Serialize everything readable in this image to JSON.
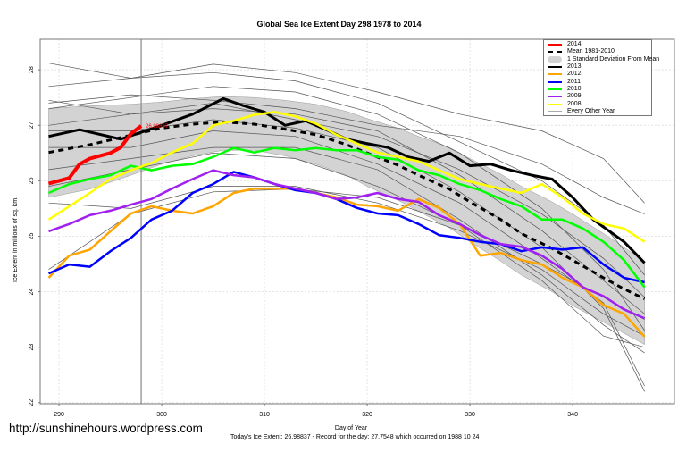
{
  "chart_data": {
    "type": "line",
    "title": "Global Sea Ice Extent Day 298 1978 to 2014",
    "xlabel": "Day of Year",
    "ylabel": "Ice Extent in millions of sq. km.",
    "xlim": [
      288.17,
      349.9
    ],
    "ylim": [
      21.98,
      28.55
    ],
    "xticks": [
      290,
      300,
      310,
      320,
      330,
      340
    ],
    "yticks": [
      22,
      23,
      24,
      25,
      26,
      27,
      28
    ],
    "grid": true,
    "legend_position": "top-right",
    "current_day_marker": 298,
    "current_value_label": "26.98837",
    "footer": "Today's Ice Extent: 26.98837  - Record for the day: 27.7548 which occurred on 1988 10 24",
    "watermark": "http://sunshinehours.wordpress.com",
    "legend": [
      "2014",
      "Mean 1981-2010",
      "1 Standard Deviation From Mean",
      "2013",
      "2012",
      "2011",
      "2010",
      "2009",
      "2008",
      "Every Other Year"
    ],
    "mean": {
      "name": "Mean 1981-2010",
      "color": "#000000",
      "x": [
        289,
        293,
        297,
        300,
        303,
        306,
        309,
        312,
        315,
        318,
        320,
        323,
        325,
        328,
        330,
        333,
        335,
        338,
        340,
        343,
        345,
        347
      ],
      "y": [
        26.51,
        26.65,
        26.82,
        26.95,
        27.02,
        27.06,
        27.02,
        26.93,
        26.83,
        26.65,
        26.5,
        26.28,
        26.1,
        25.85,
        25.62,
        25.3,
        25.05,
        24.78,
        24.57,
        24.25,
        24.05,
        23.87
      ]
    },
    "sd_band": {
      "name": "1 Standard Deviation From Mean",
      "color": "#d3d3d3",
      "x": [
        289,
        293,
        297,
        300,
        303,
        306,
        309,
        312,
        315,
        318,
        320,
        323,
        325,
        328,
        330,
        333,
        335,
        338,
        340,
        343,
        345,
        347
      ],
      "upper": [
        27.3,
        27.35,
        27.38,
        27.42,
        27.48,
        27.52,
        27.5,
        27.45,
        27.38,
        27.25,
        27.12,
        26.95,
        26.8,
        26.6,
        26.4,
        26.12,
        25.9,
        25.62,
        25.4,
        25.05,
        24.8,
        24.55
      ],
      "lower": [
        25.7,
        25.85,
        26.1,
        26.3,
        26.45,
        26.55,
        26.55,
        26.45,
        26.3,
        26.1,
        25.9,
        25.65,
        25.45,
        25.15,
        24.9,
        24.55,
        24.3,
        24.0,
        23.75,
        23.45,
        23.25,
        23.05
      ]
    },
    "series": [
      {
        "name": "2014",
        "color": "#ff0000",
        "width": 4,
        "x": [
          289,
          290,
          291,
          292,
          293,
          294,
          295,
          296,
          297,
          298
        ],
        "y": [
          25.95,
          26.0,
          26.05,
          26.3,
          26.4,
          26.45,
          26.5,
          26.6,
          26.85,
          26.99
        ]
      },
      {
        "name": "2013",
        "color": "#000000",
        "width": 3,
        "x": [
          289,
          292,
          296,
          300,
          303,
          306,
          308,
          310,
          312,
          314,
          316,
          318,
          320,
          322,
          324,
          326,
          328,
          330,
          332,
          334,
          336,
          338,
          340,
          342,
          345,
          347
        ],
        "y": [
          26.8,
          26.92,
          26.75,
          27.0,
          27.2,
          27.48,
          27.35,
          27.24,
          27.0,
          27.08,
          26.92,
          26.75,
          26.67,
          26.6,
          26.43,
          26.35,
          26.5,
          26.27,
          26.3,
          26.19,
          26.1,
          26.03,
          25.7,
          25.3,
          24.9,
          24.52
        ]
      },
      {
        "name": "2012",
        "color": "#ffa500",
        "width": 2.5,
        "x": [
          289,
          291,
          293,
          295,
          297,
          299,
          301,
          303,
          305,
          307,
          309,
          311,
          313,
          315,
          317,
          319,
          321,
          323,
          325,
          327,
          329,
          331,
          333,
          335,
          337,
          339,
          341,
          343,
          345,
          347
        ],
        "y": [
          24.25,
          24.65,
          24.76,
          25.09,
          25.41,
          25.54,
          25.46,
          25.41,
          25.54,
          25.78,
          25.86,
          25.86,
          25.86,
          25.78,
          25.7,
          25.57,
          25.54,
          25.46,
          25.67,
          25.51,
          25.22,
          24.65,
          24.7,
          24.57,
          24.49,
          24.25,
          24.08,
          23.76,
          23.6,
          23.19
        ]
      },
      {
        "name": "2011",
        "color": "#0000ff",
        "width": 2.5,
        "x": [
          289,
          291,
          293,
          295,
          297,
          299,
          301,
          303,
          305,
          307,
          309,
          311,
          313,
          315,
          317,
          319,
          321,
          323,
          325,
          327,
          329,
          331,
          333,
          335,
          337,
          339,
          341,
          343,
          345,
          347
        ],
        "y": [
          24.33,
          24.49,
          24.45,
          24.73,
          24.97,
          25.3,
          25.46,
          25.78,
          25.94,
          26.16,
          26.06,
          25.94,
          25.83,
          25.78,
          25.67,
          25.51,
          25.41,
          25.38,
          25.22,
          25.02,
          24.97,
          24.9,
          24.86,
          24.73,
          24.8,
          24.76,
          24.8,
          24.49,
          24.25,
          24.17
        ]
      },
      {
        "name": "2010",
        "color": "#00ff00",
        "width": 2.5,
        "x": [
          289,
          291,
          293,
          295,
          297,
          299,
          301,
          303,
          305,
          307,
          309,
          311,
          313,
          315,
          317,
          319,
          321,
          323,
          325,
          327,
          329,
          331,
          333,
          335,
          337,
          339,
          341,
          343,
          345,
          347
        ],
        "y": [
          25.78,
          25.94,
          26.03,
          26.1,
          26.27,
          26.19,
          26.27,
          26.3,
          26.43,
          26.59,
          26.51,
          26.59,
          26.55,
          26.59,
          26.55,
          26.55,
          26.43,
          26.38,
          26.19,
          26.1,
          25.94,
          25.83,
          25.67,
          25.54,
          25.3,
          25.3,
          25.14,
          24.9,
          24.57,
          24.08
        ]
      },
      {
        "name": "2009",
        "color": "#a020f0",
        "width": 2.5,
        "x": [
          289,
          291,
          293,
          295,
          297,
          299,
          301,
          303,
          305,
          307,
          309,
          311,
          313,
          315,
          317,
          319,
          321,
          323,
          325,
          327,
          329,
          331,
          333,
          335,
          337,
          339,
          341,
          343,
          345,
          347
        ],
        "y": [
          25.09,
          25.22,
          25.38,
          25.46,
          25.57,
          25.67,
          25.86,
          26.03,
          26.19,
          26.1,
          26.06,
          25.94,
          25.86,
          25.78,
          25.67,
          25.7,
          25.78,
          25.67,
          25.62,
          25.38,
          25.22,
          25.02,
          24.86,
          24.81,
          24.65,
          24.41,
          24.08,
          23.92,
          23.68,
          23.52
        ]
      },
      {
        "name": "2008",
        "color": "#ffff00",
        "width": 2.5,
        "x": [
          289,
          291,
          293,
          295,
          297,
          299,
          301,
          303,
          305,
          307,
          309,
          311,
          313,
          315,
          317,
          319,
          321,
          323,
          325,
          327,
          329,
          331,
          333,
          335,
          337,
          339,
          341,
          343,
          345,
          347
        ],
        "y": [
          25.3,
          25.54,
          25.78,
          26.03,
          26.19,
          26.32,
          26.51,
          26.67,
          27.0,
          27.08,
          27.19,
          27.24,
          27.16,
          27.03,
          26.83,
          26.67,
          26.51,
          26.43,
          26.35,
          26.19,
          26.03,
          25.94,
          25.86,
          25.78,
          25.94,
          25.7,
          25.41,
          25.22,
          25.14,
          24.9
        ]
      }
    ],
    "other_years": {
      "name": "Every Other Year",
      "color": "#555555",
      "x": [
        289,
        297,
        305,
        313,
        321,
        329,
        337,
        343,
        347
      ],
      "lines": [
        [
          28.12,
          27.85,
          28.1,
          27.95,
          27.6,
          27.2,
          26.9,
          26.4,
          25.6
        ],
        [
          27.7,
          27.85,
          27.95,
          27.8,
          27.4,
          26.7,
          26.0,
          25.2,
          24.3
        ],
        [
          27.45,
          27.2,
          27.4,
          27.1,
          26.8,
          26.2,
          25.4,
          24.6,
          23.9
        ],
        [
          27.3,
          27.5,
          27.7,
          27.6,
          27.2,
          26.5,
          25.5,
          24.4,
          23.3
        ],
        [
          27.0,
          27.2,
          27.3,
          27.2,
          26.9,
          26.1,
          25.1,
          24.2,
          23.6
        ],
        [
          26.9,
          26.9,
          27.1,
          26.95,
          26.6,
          25.8,
          24.8,
          23.7,
          22.2
        ],
        [
          26.6,
          26.6,
          26.9,
          26.8,
          26.3,
          25.6,
          24.6,
          23.8,
          22.3
        ],
        [
          26.2,
          26.4,
          26.6,
          26.6,
          26.2,
          25.3,
          24.3,
          23.4,
          22.9
        ],
        [
          25.9,
          26.2,
          26.5,
          26.4,
          25.9,
          25.2,
          24.2,
          23.2,
          23.0
        ],
        [
          25.6,
          25.5,
          25.9,
          25.9,
          25.6,
          25.1,
          24.4,
          23.6,
          23.2
        ],
        [
          24.4,
          25.4,
          25.8,
          25.85,
          25.7,
          25.2,
          24.5,
          23.9,
          23.5
        ],
        [
          27.4,
          27.55,
          27.45,
          27.3,
          27.0,
          26.8,
          26.3,
          25.7,
          25.4
        ]
      ]
    }
  }
}
